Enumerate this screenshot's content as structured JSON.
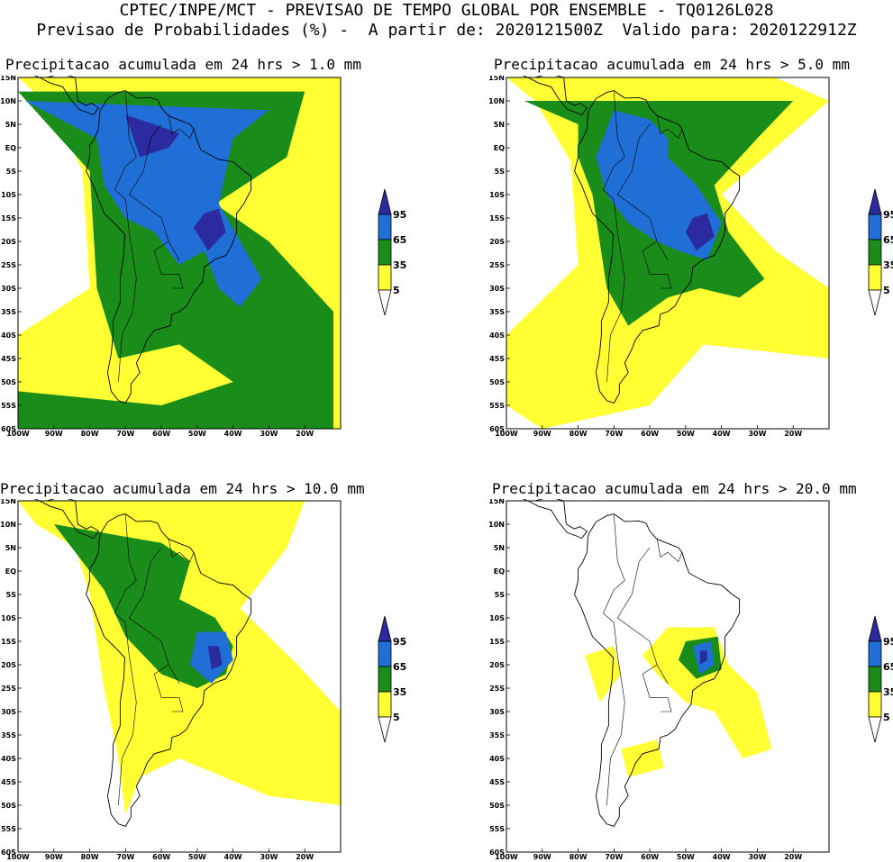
{
  "header": {
    "line1": "CPTEC/INPE/MCT - PREVISAO DE TEMPO GLOBAL POR ENSEMBLE - TQ0126L028",
    "line2": "Previsao de Probabilidades (%) -  A partir de: 2020121500Z  Valido para: 2020122912Z"
  },
  "panels": [
    {
      "title": "Precipitacao acumulada em 24 hrs > 1.0 mm",
      "threshold_mm": 1.0
    },
    {
      "title": "Precipitacao acumulada em 24 hrs > 5.0 mm",
      "threshold_mm": 5.0
    },
    {
      "title": "Precipitacao acumulada em 24 hrs > 10.0 mm",
      "threshold_mm": 10.0
    },
    {
      "title": "Precipitacao acumulada em 24 hrs > 20.0 mm",
      "threshold_mm": 20.0
    }
  ],
  "lat_labels": [
    "15N",
    "10N",
    "5N",
    "EQ",
    "5S",
    "10S",
    "15S",
    "20S",
    "25S",
    "30S",
    "35S",
    "40S",
    "45S",
    "50S",
    "55S",
    "60S"
  ],
  "lon_labels": [
    "100W",
    "90W",
    "80W",
    "70W",
    "60W",
    "50W",
    "40W",
    "30W",
    "20W"
  ],
  "colorbar": {
    "levels": [
      "95",
      "65",
      "35",
      "5"
    ],
    "colors": {
      "c95": "#2b2a9e",
      "c65": "#1f6fd6",
      "c35": "#1a8c1a",
      "c5": "#ffff33"
    }
  }
}
